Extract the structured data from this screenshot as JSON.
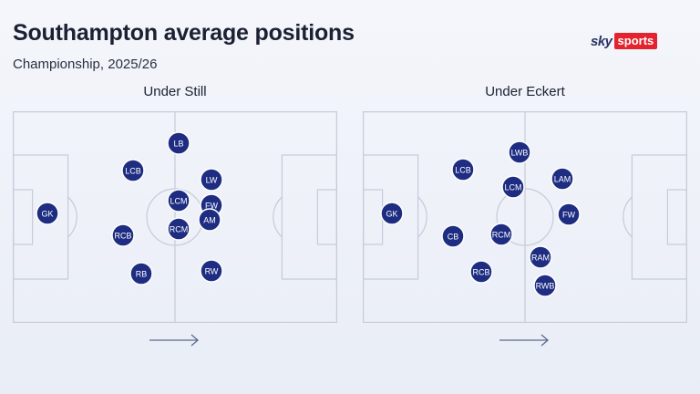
{
  "header": {
    "title": "Southampton average positions",
    "subtitle": "Championship, 2025/26"
  },
  "logo": {
    "sky": "sky",
    "sports": "sports",
    "accent": "#e3232e"
  },
  "colors": {
    "player_fill": "#1e2d82",
    "pitch_lines": "#c5cbd9"
  },
  "pitches": [
    {
      "label": "Under Still",
      "players": [
        {
          "pos": "LB"
        },
        {
          "pos": "LCB"
        },
        {
          "pos": "LW"
        },
        {
          "pos": "LCM"
        },
        {
          "pos": "FW"
        },
        {
          "pos": "GK"
        },
        {
          "pos": "AM"
        },
        {
          "pos": "RCM"
        },
        {
          "pos": "RCB"
        },
        {
          "pos": "RB"
        },
        {
          "pos": "RW"
        }
      ]
    },
    {
      "label": "Under Eckert",
      "players": [
        {
          "pos": "LWB"
        },
        {
          "pos": "LCB"
        },
        {
          "pos": "LAM"
        },
        {
          "pos": "LCM"
        },
        {
          "pos": "GK"
        },
        {
          "pos": "FW"
        },
        {
          "pos": "CB"
        },
        {
          "pos": "RCM"
        },
        {
          "pos": "RAM"
        },
        {
          "pos": "RCB"
        },
        {
          "pos": "RWB"
        }
      ]
    }
  ],
  "attack_direction_icon": "right-arrow-icon"
}
